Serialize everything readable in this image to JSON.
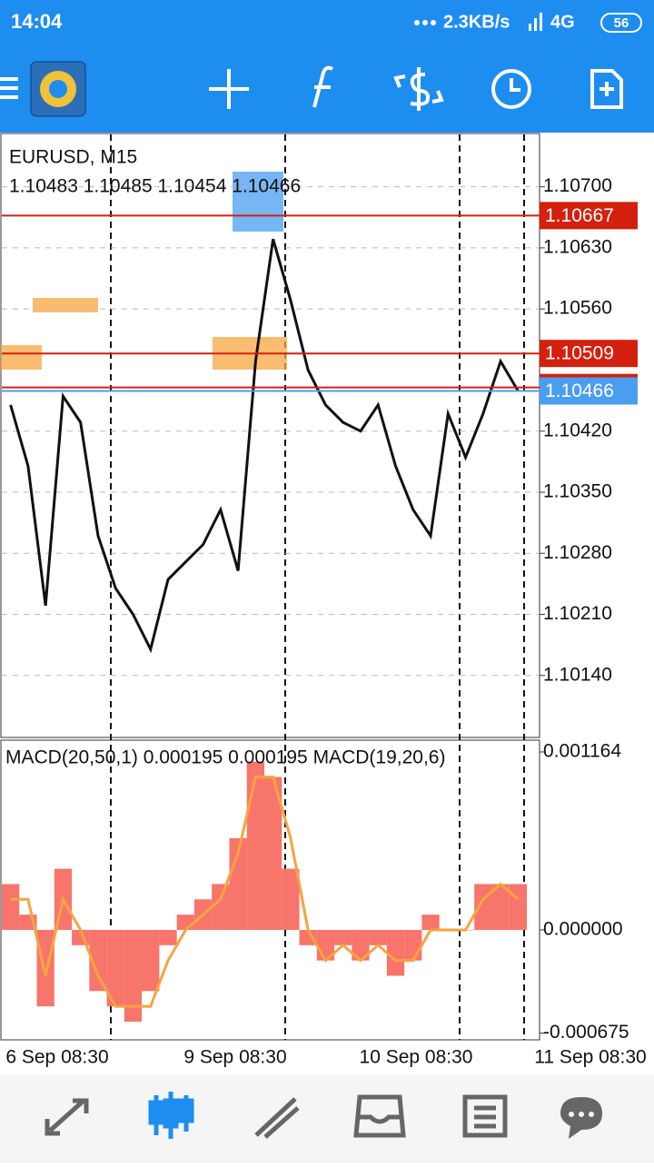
{
  "status_bar": {
    "time": "14:04",
    "speed": "2.3KB/s",
    "network": "4G",
    "battery": "56"
  },
  "chart_data": [
    {
      "type": "line",
      "title": "EURUSD, M15",
      "subtitle": "1.10483 1.10485 1.10454 1.10466",
      "series": [
        {
          "color": "#111111",
          "values": [
            1.1045,
            1.1038,
            1.1022,
            1.1046,
            1.1043,
            1.103,
            1.1024,
            1.1021,
            1.1017,
            1.1025,
            1.1027,
            1.1029,
            1.1033,
            1.1026,
            1.105,
            1.1064,
            1.1057,
            1.1049,
            1.1045,
            1.1043,
            1.1042,
            1.1045,
            1.1038,
            1.1033,
            1.103,
            1.1044,
            1.1039,
            1.1044,
            1.105,
            1.10466
          ]
        }
      ],
      "ylim": [
        1.10069,
        1.1076
      ],
      "yticks": [
        {
          "value": 1.107,
          "label": "1.10700"
        },
        {
          "value": 1.1063,
          "label": "1.10630"
        },
        {
          "value": 1.1056,
          "label": "1.10560"
        },
        {
          "value": 1.1042,
          "label": "1.10420"
        },
        {
          "value": 1.1035,
          "label": "1.10350"
        },
        {
          "value": 1.1028,
          "label": "1.10280"
        },
        {
          "value": 1.1021,
          "label": "1.10210"
        },
        {
          "value": 1.1014,
          "label": "1.10140"
        }
      ],
      "levels": [
        {
          "value": 1.10667,
          "color": "#d3200f"
        },
        {
          "value": 1.10509,
          "color": "#d3200f"
        },
        {
          "value": {
            "value": 1.1047,
            "label": "1.10470"
          },
          "color": "#d3200f"
        },
        {
          "value": 1.10466,
          "color": "#4a9ef0"
        }
      ],
      "x_labels": [
        "6 Sep 08:30",
        "9 Sep 08:30",
        "10 Sep 08:30",
        "11 Sep 08:30"
      ],
      "grid": true
    },
    {
      "type": "bar",
      "title": "MACD(20,50,1) 0.000195 0.000195 MACD(19,20,6)",
      "series": [
        {
          "color": "#f7756a",
          "values": [
            0.0003,
            0.0001,
            -0.0005,
            0.0004,
            -0.0001,
            -0.0004,
            -0.0005,
            -0.0006,
            -0.0004,
            -0.0001,
            0.0001,
            0.0002,
            0.0003,
            0.0006,
            0.0011,
            0.001,
            0.0004,
            -0.0001,
            -0.0002,
            -0.0001,
            -0.0002,
            -0.0001,
            -0.0003,
            -0.0002,
            0.0001,
            0.0,
            0.0,
            0.0003,
            0.0003,
            0.0003
          ]
        },
        {
          "type": "line",
          "color": "#f4a540",
          "values": [
            0.0002,
            0.0002,
            -0.0003,
            0.0002,
            0.0,
            -0.0003,
            -0.0005,
            -0.0005,
            -0.0005,
            -0.0002,
            0.0,
            0.0001,
            0.0002,
            0.0005,
            0.001,
            0.001,
            0.0006,
            0.0,
            -0.0002,
            -0.0001,
            -0.0002,
            -0.0001,
            -0.0002,
            -0.0002,
            0.0,
            0.0,
            0.0,
            0.0002,
            0.0003,
            0.0002
          ]
        }
      ],
      "ylim": [
        -0.000719,
        0.001241
      ],
      "yticks": [
        0.001164,
        {
          "value": 0,
          "label": "0.000000"
        },
        -0.000675
      ]
    }
  ]
}
